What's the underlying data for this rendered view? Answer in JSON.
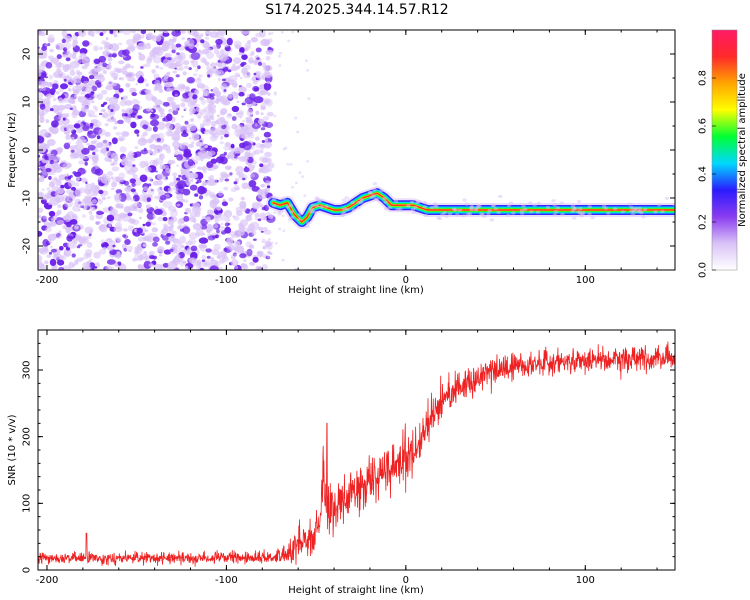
{
  "title": "S174.2025.344.14.57.R12",
  "colors": {
    "background": "#ffffff",
    "snr_line": "#ee2222",
    "speckle_dark": "#6a1fe8",
    "speckle_light": "#d9c2f7",
    "frame": "#000000"
  },
  "chart_data": [
    {
      "type": "heatmap",
      "name": "spectrogram",
      "title": "S174.2025.344.14.57.R12",
      "xlabel": "Height of straight line (km)",
      "ylabel": "Frequency (Hz)",
      "xlim": [
        -205,
        150
      ],
      "ylim": [
        -25,
        25
      ],
      "xticks": [
        -200,
        -100,
        0,
        100
      ],
      "yticks": [
        -20,
        -10,
        0,
        10,
        20
      ],
      "xtick_labels": [
        "-200",
        "-100",
        "0",
        "100"
      ],
      "ytick_labels": [
        "-20",
        "-10",
        "0",
        "10",
        "20"
      ],
      "noise_region": {
        "x_from": -205,
        "x_to": -75,
        "description": "scattered purple noise"
      },
      "ridge": {
        "x": [
          -74,
          -70,
          -66,
          -62,
          -58,
          -55,
          -52,
          -48,
          -44,
          -40,
          -36,
          -32,
          -28,
          -24,
          -20,
          -16,
          -12,
          -8,
          -4,
          0,
          4,
          8,
          12,
          20,
          30,
          50,
          80,
          110,
          150
        ],
        "freq": [
          -11,
          -11.5,
          -11,
          -13.5,
          -15,
          -14,
          -12,
          -11.5,
          -12,
          -12.5,
          -12.5,
          -12,
          -11,
          -10,
          -9.5,
          -9,
          -10,
          -11.5,
          -11.5,
          -11.5,
          -11.5,
          -12,
          -12.5,
          -12.5,
          -12.5,
          -12.5,
          -12.5,
          -12.5,
          -12.5
        ]
      },
      "colorbar": {
        "label": "Normalized spectral amplitude",
        "range": [
          0,
          1
        ],
        "ticks": [
          0.0,
          0.2,
          0.4,
          0.6,
          0.8
        ],
        "tick_labels": [
          "0.0",
          "0.2",
          "0.4",
          "0.6",
          "0.8"
        ],
        "colormap": [
          "#ffffff",
          "#d9c2f7",
          "#8a3cf0",
          "#2b1bff",
          "#00d8ff",
          "#00ff33",
          "#ffff00",
          "#ffa500",
          "#ff2a2a",
          "#ff1a66"
        ]
      }
    },
    {
      "type": "line",
      "name": "snr",
      "xlabel": "Height of straight line (km)",
      "ylabel": "SNR (10 * v/v)",
      "xlim": [
        -205,
        150
      ],
      "ylim": [
        0,
        360
      ],
      "xticks": [
        -200,
        -100,
        0,
        100
      ],
      "yticks": [
        0,
        100,
        200,
        300
      ],
      "xtick_labels": [
        "-200",
        "-100",
        "0",
        "100"
      ],
      "ytick_labels": [
        "0",
        "100",
        "200",
        "300"
      ],
      "series": [
        {
          "name": "SNR",
          "x": [
            -205,
            -180,
            -150,
            -120,
            -90,
            -70,
            -64,
            -60,
            -56,
            -52,
            -48,
            -46,
            -44,
            -40,
            -30,
            -20,
            -10,
            0,
            5,
            10,
            15,
            20,
            25,
            30,
            40,
            50,
            60,
            80,
            100,
            120,
            150
          ],
          "values": [
            18,
            18,
            18,
            18,
            18,
            20,
            28,
            45,
            50,
            45,
            80,
            130,
            95,
            95,
            115,
            135,
            150,
            165,
            180,
            200,
            230,
            255,
            268,
            275,
            288,
            300,
            305,
            312,
            315,
            318,
            318
          ],
          "noise": [
            6,
            6,
            6,
            6,
            6,
            7,
            15,
            18,
            20,
            20,
            25,
            40,
            30,
            25,
            25,
            25,
            25,
            28,
            28,
            25,
            22,
            20,
            18,
            16,
            14,
            14,
            14,
            14,
            14,
            14,
            14
          ]
        }
      ],
      "spikes": [
        {
          "x": -44,
          "y": 220
        },
        {
          "x": -178,
          "y": 55
        }
      ]
    }
  ]
}
